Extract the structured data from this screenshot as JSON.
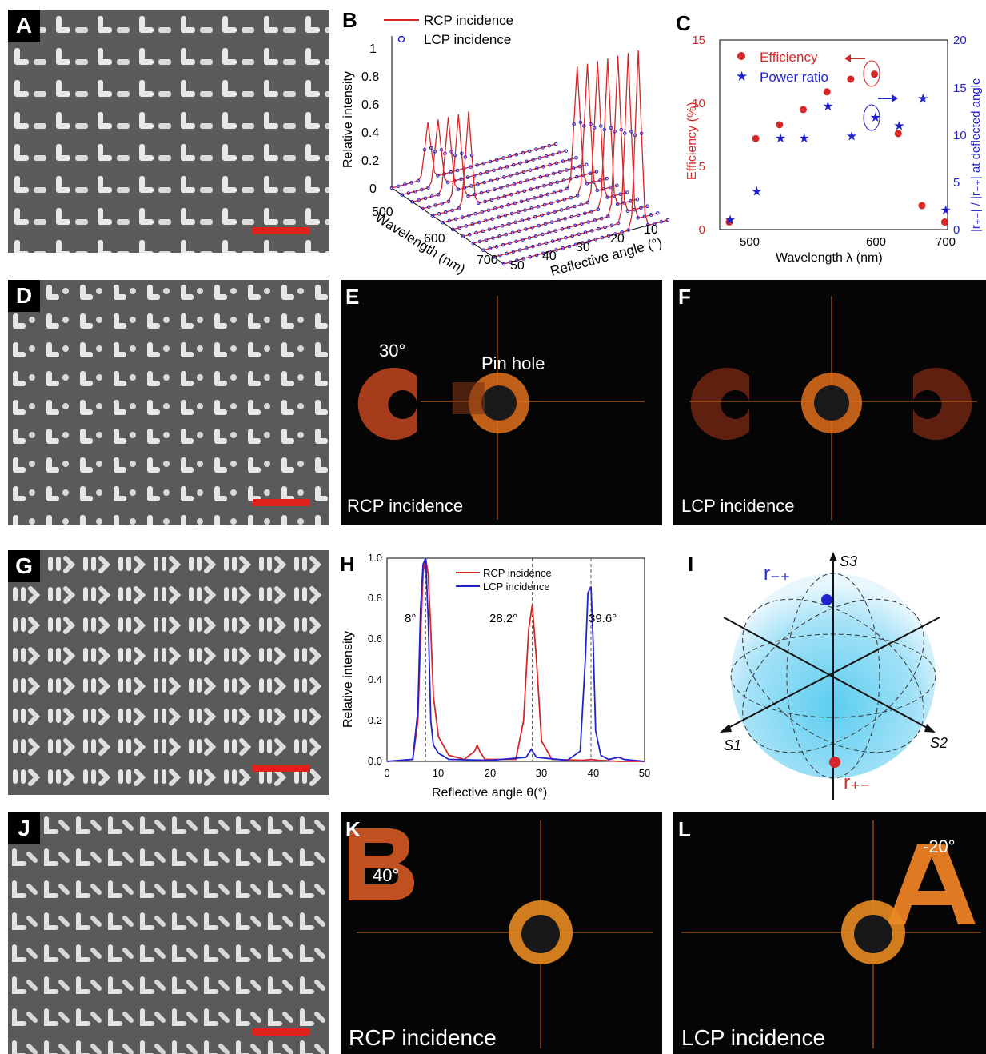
{
  "panels": {
    "A": {
      "label": "A"
    },
    "B": {
      "label": "B",
      "legend": [
        "RCP incidence",
        "LCP incidence"
      ],
      "zlabel": "Relative intensity",
      "zticks": [
        "0",
        "0.2",
        "0.4",
        "0.6",
        "0.8",
        "1"
      ],
      "wlabel": "Wavelength (nm)",
      "wticks": [
        "500",
        "600",
        "700"
      ],
      "alabel": "Reflective angle (°)",
      "aticks": [
        "50",
        "40",
        "30",
        "20",
        "10",
        "0"
      ]
    },
    "C": {
      "label": "C",
      "legend": [
        "Efficiency",
        "Power ratio"
      ],
      "xlabel": "Wavelength λ (nm)",
      "ylabel_left": "Efficiency (%)",
      "ylabel_right": "|r₊₋| / |r₋₊| at deflected angle",
      "xticks": [
        "500",
        "600",
        "700"
      ],
      "yticks_left": [
        "0",
        "5",
        "10",
        "15"
      ],
      "yticks_right": [
        "0",
        "5",
        "10",
        "15",
        "20"
      ]
    },
    "D": {
      "label": "D"
    },
    "E": {
      "label": "E",
      "angle": "30°",
      "pinhole": "Pin hole",
      "caption": "RCP incidence"
    },
    "F": {
      "label": "F",
      "caption": "LCP incidence"
    },
    "G": {
      "label": "G"
    },
    "H": {
      "label": "H",
      "legend": [
        "RCP incidence",
        "LCP incidence"
      ],
      "xlabel": "Reflective angle θ(°)",
      "ylabel": "Relative intensity",
      "xticks": [
        "0",
        "10",
        "20",
        "30",
        "40",
        "50"
      ],
      "yticks": [
        "0.0",
        "0.2",
        "0.4",
        "0.6",
        "0.8",
        "1.0"
      ],
      "peaks": [
        "8°",
        "28.2°",
        "39.6°"
      ]
    },
    "I": {
      "label": "I",
      "axes": [
        "S1",
        "S2",
        "S3"
      ],
      "points": [
        "r₋₊",
        "r₊₋"
      ]
    },
    "J": {
      "label": "J"
    },
    "K": {
      "label": "K",
      "angle": "40°",
      "caption": "RCP incidence"
    },
    "L": {
      "label": "L",
      "angle": "-20°",
      "caption": "LCP incidence"
    }
  },
  "colors": {
    "rcp": "#d62728",
    "lcp": "#2222cc",
    "scalebar": "#e0201c"
  },
  "chart_data": [
    {
      "type": "scatter",
      "panel": "C",
      "x_unit": "nm",
      "series": [
        {
          "name": "Efficiency",
          "axis": "left",
          "x": [
            470,
            498,
            523,
            548,
            573,
            598,
            623,
            648,
            673,
            697
          ],
          "y": [
            0.6,
            7.2,
            8.3,
            9.5,
            10.9,
            11.9,
            12.3,
            7.6,
            1.9,
            0.6
          ]
        },
        {
          "name": "Power ratio",
          "axis": "right",
          "x": [
            470,
            498,
            523,
            548,
            573,
            598,
            623,
            648,
            673,
            697
          ],
          "y": [
            1.1,
            4.1,
            9.7,
            9.7,
            13.1,
            9.9,
            11.9,
            11.0,
            13.9,
            2.1
          ]
        }
      ],
      "xlim": [
        460,
        700
      ],
      "ylim_left": [
        0,
        15
      ],
      "ylim_right": [
        0,
        20
      ]
    },
    {
      "type": "line",
      "panel": "H",
      "xlim": [
        0,
        50
      ],
      "ylim": [
        0,
        1.0
      ],
      "series": [
        {
          "name": "RCP incidence",
          "x": [
            0,
            5,
            6,
            6.5,
            7,
            7.5,
            8,
            8.5,
            9,
            10,
            12,
            15,
            17,
            17.5,
            18,
            19,
            25,
            26.5,
            27.5,
            28.2,
            29,
            30,
            32,
            38,
            39.6,
            41,
            45,
            50
          ],
          "y": [
            0,
            0.01,
            0.2,
            0.6,
            0.93,
            1.0,
            0.92,
            0.65,
            0.32,
            0.12,
            0.03,
            0.01,
            0.05,
            0.08,
            0.05,
            0.01,
            0.01,
            0.2,
            0.65,
            0.77,
            0.5,
            0.1,
            0.01,
            0.005,
            0.01,
            0.005,
            0,
            0
          ]
        },
        {
          "name": "LCP incidence",
          "x": [
            0,
            5,
            6,
            6.5,
            7,
            7.5,
            8,
            8.5,
            9,
            10,
            12,
            20,
            27,
            28,
            29,
            35,
            37.5,
            38.5,
            39,
            39.6,
            40,
            40.5,
            41.5,
            43,
            45,
            46,
            50
          ],
          "y": [
            0,
            0.01,
            0.25,
            0.75,
            0.97,
            1.0,
            0.7,
            0.2,
            0.08,
            0.04,
            0.01,
            0.005,
            0.02,
            0.06,
            0.02,
            0.005,
            0.05,
            0.5,
            0.83,
            0.86,
            0.6,
            0.15,
            0.03,
            0.01,
            0.02,
            0.01,
            0
          ]
        }
      ]
    }
  ]
}
